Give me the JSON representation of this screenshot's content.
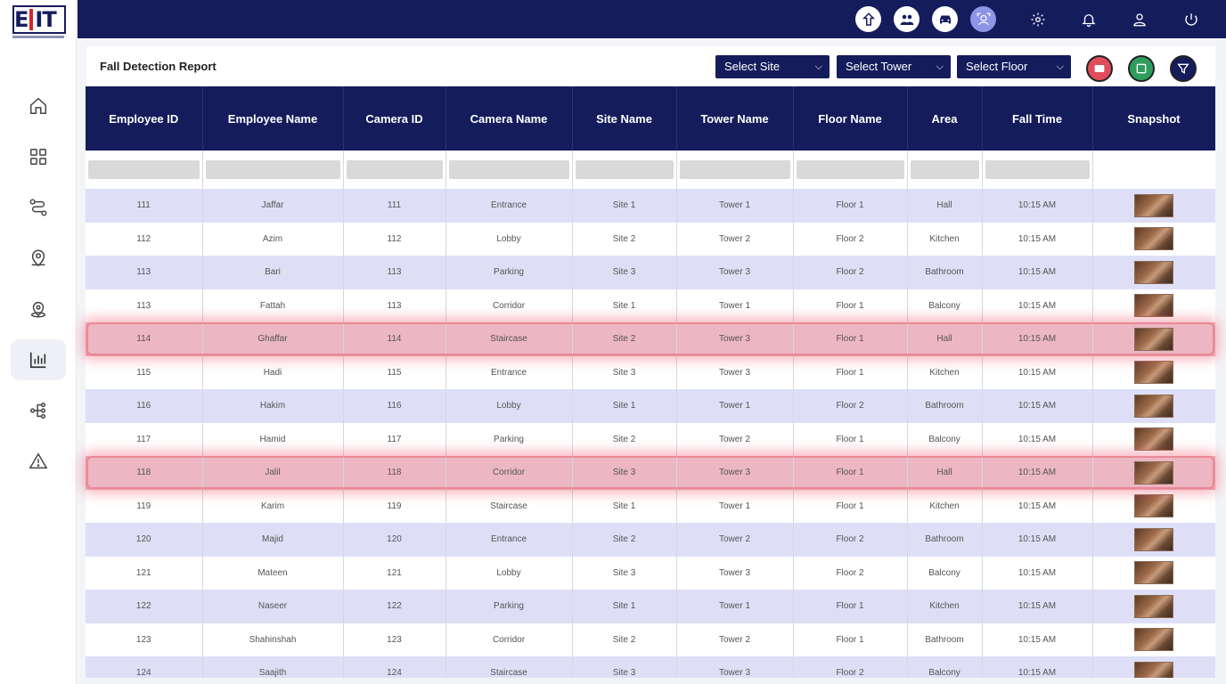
{
  "app": {
    "logo_text": "EIT"
  },
  "sidebar": {
    "items": [
      {
        "icon": "home-icon"
      },
      {
        "icon": "dashboard-grid-icon"
      },
      {
        "icon": "route-icon"
      },
      {
        "icon": "location-user-icon"
      },
      {
        "icon": "geofence-icon"
      },
      {
        "icon": "bar-chart-icon",
        "active": true
      },
      {
        "icon": "hierarchy-icon"
      },
      {
        "icon": "warning-icon"
      }
    ]
  },
  "topbar": {
    "icons": [
      "fire-safety-icon",
      "people-icon",
      "car-icon",
      "face-scan-icon",
      "settings-icon",
      "bell-icon",
      "user-icon",
      "power-icon"
    ]
  },
  "report": {
    "title": "Fall Detection Report",
    "filters": {
      "site": "Select Site",
      "tower": "Select Tower",
      "floor": "Select Floor"
    },
    "actions": [
      "pdf-export-icon",
      "excel-export-icon",
      "filter-icon"
    ]
  },
  "table": {
    "columns": [
      "Employee ID",
      "Employee Name",
      "Camera ID",
      "Camera Name",
      "Site Name",
      "Tower Name",
      "Floor Name",
      "Area",
      "Fall Time",
      "Snapshot"
    ],
    "rows": [
      {
        "emp_id": "111",
        "name": "Jaffar",
        "cam_id": "111",
        "cam_name": "Entrance",
        "site": "Site 1",
        "tower": "Tower 1",
        "floor": "Floor 1",
        "area": "Hall",
        "time": "10:15 AM",
        "alert": false
      },
      {
        "emp_id": "112",
        "name": "Azim",
        "cam_id": "112",
        "cam_name": "Lobby",
        "site": "Site 2",
        "tower": "Tower 2",
        "floor": "Floor 2",
        "area": "Kitchen",
        "time": "10:15 AM",
        "alert": false
      },
      {
        "emp_id": "113",
        "name": "Bari",
        "cam_id": "113",
        "cam_name": "Parking",
        "site": "Site 3",
        "tower": "Tower 3",
        "floor": "Floor 2",
        "area": "Bathroom",
        "time": "10:15 AM",
        "alert": false
      },
      {
        "emp_id": "113",
        "name": "Fattah",
        "cam_id": "113",
        "cam_name": "Corridor",
        "site": "Site 1",
        "tower": "Tower 1",
        "floor": "Floor 1",
        "area": "Balcony",
        "time": "10:15 AM",
        "alert": false
      },
      {
        "emp_id": "114",
        "name": "Ghaffar",
        "cam_id": "114",
        "cam_name": "Staircase",
        "site": "Site 2",
        "tower": "Tower 3",
        "floor": "Floor 1",
        "area": "Hall",
        "time": "10:15 AM",
        "alert": true
      },
      {
        "emp_id": "115",
        "name": "Hadi",
        "cam_id": "115",
        "cam_name": "Entrance",
        "site": "Site 3",
        "tower": "Tower 3",
        "floor": "Floor 1",
        "area": "Kitchen",
        "time": "10:15 AM",
        "alert": false
      },
      {
        "emp_id": "116",
        "name": "Hakim",
        "cam_id": "116",
        "cam_name": "Lobby",
        "site": "Site 1",
        "tower": "Tower 1",
        "floor": "Floor 2",
        "area": "Bathroom",
        "time": "10:15 AM",
        "alert": false
      },
      {
        "emp_id": "117",
        "name": "Hamid",
        "cam_id": "117",
        "cam_name": "Parking",
        "site": "Site 2",
        "tower": "Tower 2",
        "floor": "Floor 1",
        "area": "Balcony",
        "time": "10:15 AM",
        "alert": false
      },
      {
        "emp_id": "118",
        "name": "Jalil",
        "cam_id": "118",
        "cam_name": "Corridor",
        "site": "Site 3",
        "tower": "Tower 3",
        "floor": "Floor 1",
        "area": "Hall",
        "time": "10:15 AM",
        "alert": true
      },
      {
        "emp_id": "119",
        "name": "Karim",
        "cam_id": "119",
        "cam_name": "Staircase",
        "site": "Site 1",
        "tower": "Tower 1",
        "floor": "Floor 1",
        "area": "Kitchen",
        "time": "10:15 AM",
        "alert": false
      },
      {
        "emp_id": "120",
        "name": "Majid",
        "cam_id": "120",
        "cam_name": "Entrance",
        "site": "Site 2",
        "tower": "Tower 2",
        "floor": "Floor 2",
        "area": "Bathroom",
        "time": "10:15 AM",
        "alert": false
      },
      {
        "emp_id": "121",
        "name": "Mateen",
        "cam_id": "121",
        "cam_name": "Lobby",
        "site": "Site 3",
        "tower": "Tower 3",
        "floor": "Floor 2",
        "area": "Balcony",
        "time": "10:15 AM",
        "alert": false
      },
      {
        "emp_id": "122",
        "name": "Naseer",
        "cam_id": "122",
        "cam_name": "Parking",
        "site": "Site 1",
        "tower": "Tower 1",
        "floor": "Floor 1",
        "area": "Kitchen",
        "time": "10:15 AM",
        "alert": false
      },
      {
        "emp_id": "123",
        "name": "Shahinshah",
        "cam_id": "123",
        "cam_name": "Corridor",
        "site": "Site 2",
        "tower": "Tower 2",
        "floor": "Floor 1",
        "area": "Bathroom",
        "time": "10:15 AM",
        "alert": false
      },
      {
        "emp_id": "124",
        "name": "Saajith",
        "cam_id": "124",
        "cam_name": "Staircase",
        "site": "Site 3",
        "tower": "Tower 3",
        "floor": "Floor 2",
        "area": "Balcony",
        "time": "10:15 AM",
        "alert": false
      }
    ]
  },
  "colors": {
    "navy": "#141c5c",
    "row_alt": "#dedff7",
    "alert_row": "#ecb6c2",
    "accent_purple": "#8e95e6"
  }
}
